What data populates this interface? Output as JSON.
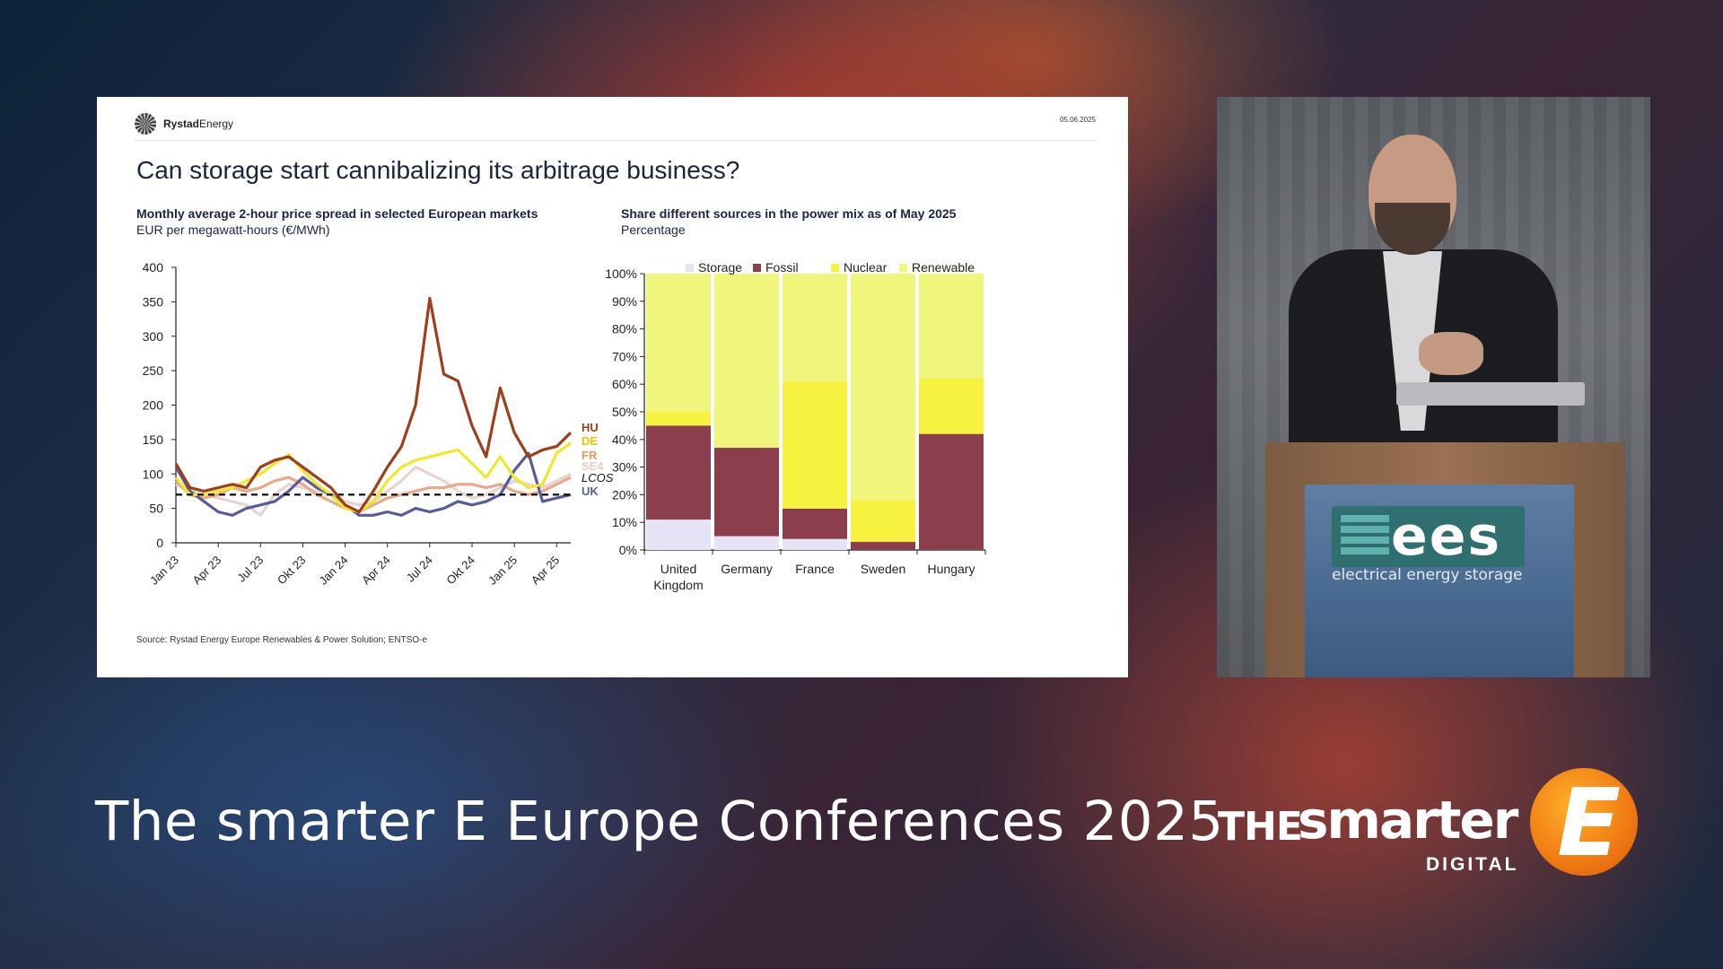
{
  "slide": {
    "brand_bold": "Rystad",
    "brand_light": "Energy",
    "date": "05.06.2025",
    "title": "Can storage start cannibalizing its arbitrage business?",
    "source": "Source: Rystad Energy Europe Renewables & Power Solution; ENTSO-e"
  },
  "left_chart": {
    "title": "Monthly average 2-hour price spread in selected European markets",
    "subtitle": "EUR per megawatt-hours (€/MWh)"
  },
  "right_chart": {
    "title": "Share different sources in the power mix as of May 2025",
    "subtitle": "Percentage"
  },
  "chart_data": [
    {
      "type": "line",
      "title": "Monthly average 2-hour price spread in selected European markets",
      "ylabel": "EUR per megawatt-hours (€/MWh)",
      "ylim": [
        0,
        400
      ],
      "yticks": [
        0,
        50,
        100,
        150,
        200,
        250,
        300,
        350,
        400
      ],
      "xtick_labels": [
        "Jan 23",
        "Apr 23",
        "Jul 23",
        "Okt 23",
        "Jan 24",
        "Apr 24",
        "Jul 24",
        "Okt 24",
        "Jan 25",
        "Apr 25"
      ],
      "x": [
        "Jan 23",
        "Feb 23",
        "Mar 23",
        "Apr 23",
        "May 23",
        "Jun 23",
        "Jul 23",
        "Aug 23",
        "Sep 23",
        "Okt 23",
        "Nov 23",
        "Dec 23",
        "Jan 24",
        "Feb 24",
        "Mar 24",
        "Apr 24",
        "May 24",
        "Jun 24",
        "Jul 24",
        "Aug 24",
        "Sep 24",
        "Okt 24",
        "Nov 24",
        "Dec 24",
        "Jan 25",
        "Feb 25",
        "Mar 25",
        "Apr 25",
        "May 25"
      ],
      "series": [
        {
          "name": "HU",
          "color": "#9c3f1a",
          "values": [
            115,
            80,
            75,
            80,
            85,
            80,
            110,
            120,
            125,
            110,
            95,
            80,
            55,
            45,
            75,
            110,
            140,
            200,
            355,
            245,
            235,
            170,
            125,
            225,
            160,
            125,
            135,
            140,
            160
          ]
        },
        {
          "name": "DE",
          "color": "#f2e62a",
          "values": [
            95,
            70,
            70,
            75,
            80,
            90,
            100,
            115,
            128,
            105,
            85,
            70,
            50,
            45,
            60,
            90,
            110,
            120,
            125,
            130,
            135,
            115,
            95,
            125,
            95,
            80,
            85,
            130,
            145
          ]
        },
        {
          "name": "FR",
          "color": "#e8a98a",
          "values": [
            90,
            70,
            65,
            70,
            80,
            75,
            80,
            90,
            95,
            85,
            70,
            60,
            50,
            45,
            55,
            65,
            70,
            75,
            80,
            80,
            85,
            85,
            80,
            85,
            75,
            70,
            75,
            85,
            95
          ]
        },
        {
          "name": "SE4",
          "color": "#e6d4d0",
          "values": [
            85,
            75,
            70,
            65,
            60,
            55,
            40,
            70,
            85,
            80,
            75,
            70,
            60,
            55,
            60,
            75,
            90,
            110,
            100,
            90,
            75,
            65,
            70,
            80,
            90,
            85,
            80,
            90,
            100
          ]
        },
        {
          "name": "LCOS",
          "color": "#000000",
          "dashed": true,
          "values": [
            70,
            70,
            70,
            70,
            70,
            70,
            70,
            70,
            70,
            70,
            70,
            70,
            70,
            70,
            70,
            70,
            70,
            70,
            70,
            70,
            70,
            70,
            70,
            70,
            70,
            70,
            70,
            70,
            70
          ]
        },
        {
          "name": "UK",
          "color": "#5a5a9e",
          "values": [
            110,
            75,
            60,
            45,
            40,
            50,
            55,
            60,
            75,
            95,
            80,
            70,
            55,
            40,
            40,
            45,
            40,
            50,
            45,
            50,
            60,
            55,
            60,
            70,
            105,
            130,
            60,
            65,
            70
          ]
        }
      ]
    },
    {
      "type": "bar",
      "stacked": true,
      "title": "Share different sources in the power mix as of May 2025",
      "ylabel": "Percentage",
      "ylim": [
        0,
        100
      ],
      "ytick_labels": [
        "0%",
        "10%",
        "20%",
        "30%",
        "40%",
        "50%",
        "60%",
        "70%",
        "80%",
        "90%",
        "100%"
      ],
      "legend_position": "top",
      "categories": [
        "United Kingdom",
        "Germany",
        "France",
        "Sweden",
        "Hungary"
      ],
      "category_lines": [
        [
          "United",
          "Kingdom"
        ],
        [
          "Germany"
        ],
        [
          "France"
        ],
        [
          "Sweden"
        ],
        [
          "Hungary"
        ]
      ],
      "series": [
        {
          "name": "Storage",
          "color": "#e4e4f6",
          "values": [
            11,
            5,
            4,
            0,
            0
          ]
        },
        {
          "name": "Fossil",
          "color": "#8b3e4c",
          "values": [
            34,
            32,
            11,
            3,
            42
          ]
        },
        {
          "name": "Nuclear",
          "color": "#f7f23f",
          "values": [
            5,
            0,
            46,
            15,
            20
          ]
        },
        {
          "name": "Renewable",
          "color": "#f0f57c",
          "values": [
            50,
            63,
            39,
            82,
            38
          ]
        }
      ]
    }
  ],
  "event": {
    "title": "The smarter E Europe Conferences 2025"
  },
  "logo": {
    "the": "THE",
    "smarter": "smarter",
    "digital": "DIGITAL",
    "e_letter": "E"
  },
  "podium": {
    "logo_text": "ees",
    "logo_sub": "electrical energy storage"
  }
}
